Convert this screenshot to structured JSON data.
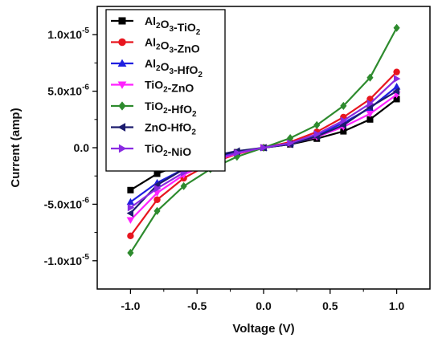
{
  "chart_data": {
    "type": "line",
    "xlabel": "Voltage (V)",
    "ylabel": "Current (amp)",
    "xlim": [
      -1.25,
      1.25
    ],
    "ylim": [
      -1.25e-05,
      1.25e-05
    ],
    "xticks": [
      {
        "value": -1.0,
        "label": "-1.0"
      },
      {
        "value": -0.5,
        "label": "-0.5"
      },
      {
        "value": 0.0,
        "label": "0.0"
      },
      {
        "value": 0.5,
        "label": "0.5"
      },
      {
        "value": 1.0,
        "label": "1.0"
      }
    ],
    "yticks": [
      {
        "value": -1e-05,
        "base": "-1.0x10",
        "exp": "-5"
      },
      {
        "value": -5e-06,
        "base": "-5.0x10",
        "exp": "-6"
      },
      {
        "value": 0.0,
        "base": "0.0",
        "exp": ""
      },
      {
        "value": 5e-06,
        "base": "5.0x10",
        "exp": "-6"
      },
      {
        "value": 1e-05,
        "base": "1.0x10",
        "exp": "-5"
      }
    ],
    "grid": false,
    "legend_position": "top-left",
    "x": [
      -1.0,
      -0.8,
      -0.6,
      -0.4,
      -0.2,
      0.0,
      0.2,
      0.4,
      0.6,
      0.8,
      1.0
    ],
    "series": [
      {
        "name": "Al2O3-TiO2",
        "label_parts": [
          [
            "Al",
            ""
          ],
          [
            "2",
            "sub"
          ],
          [
            "O",
            ""
          ],
          [
            "3",
            "sub"
          ],
          [
            "-TiO",
            ""
          ],
          [
            "2",
            "sub"
          ]
        ],
        "color": "#000000",
        "marker": "square",
        "values": [
          -3.75e-06,
          -2.3e-06,
          -1.4e-06,
          -8.5e-07,
          -4e-07,
          0.0,
          3e-07,
          8e-07,
          1.45e-06,
          2.5e-06,
          4.3e-06
        ]
      },
      {
        "name": "Al2O3-ZnO",
        "label_parts": [
          [
            "Al",
            ""
          ],
          [
            "2",
            "sub"
          ],
          [
            "O",
            ""
          ],
          [
            "3",
            "sub"
          ],
          [
            "-ZnO",
            ""
          ]
        ],
        "color": "#e8161f",
        "marker": "circle",
        "values": [
          -7.8e-06,
          -4.6e-06,
          -2.7e-06,
          -1.4e-06,
          -5.5e-07,
          0.0,
          5e-07,
          1.4e-06,
          2.7e-06,
          4.3e-06,
          6.7e-06
        ]
      },
      {
        "name": "Al2O3-HfO2",
        "label_parts": [
          [
            "Al",
            ""
          ],
          [
            "2",
            "sub"
          ],
          [
            "O",
            ""
          ],
          [
            "3",
            "sub"
          ],
          [
            "-HfO",
            ""
          ],
          [
            "2",
            "sub"
          ]
        ],
        "color": "#1f1fe0",
        "marker": "triangle-up",
        "values": [
          -4.8e-06,
          -3.1e-06,
          -1.9e-06,
          -1e-06,
          -4.5e-07,
          0.0,
          4e-07,
          1.1e-06,
          2.2e-06,
          3.5e-06,
          5.4e-06
        ]
      },
      {
        "name": "TiO2-ZnO",
        "label_parts": [
          [
            "TiO",
            ""
          ],
          [
            "2",
            "sub"
          ],
          [
            "-ZnO",
            ""
          ]
        ],
        "color": "#ff22ff",
        "marker": "triangle-down",
        "values": [
          -6.4e-06,
          -4e-06,
          -2.4e-06,
          -1.25e-06,
          -5e-07,
          0.0,
          3.5e-07,
          9.5e-07,
          1.85e-06,
          3e-06,
          4.7e-06
        ]
      },
      {
        "name": "TiO2-HfO2",
        "label_parts": [
          [
            "TiO",
            ""
          ],
          [
            "2",
            "sub"
          ],
          [
            "-HfO",
            ""
          ],
          [
            "2",
            "sub"
          ]
        ],
        "color": "#2e8b2e",
        "marker": "diamond",
        "values": [
          -9.3e-06,
          -5.6e-06,
          -3.4e-06,
          -1.9e-06,
          -8e-07,
          0.0,
          8.5e-07,
          2e-06,
          3.7e-06,
          6.2e-06,
          1.06e-05
        ]
      },
      {
        "name": "ZnO-HfO2",
        "label_parts": [
          [
            "ZnO-HfO",
            ""
          ],
          [
            "2",
            "sub"
          ]
        ],
        "color": "#1c1c6e",
        "marker": "triangle-left",
        "values": [
          -5.8e-06,
          -3.3e-06,
          -1.9e-06,
          -7.5e-07,
          -3e-07,
          0.0,
          3e-07,
          1e-06,
          2e-06,
          3.6e-06,
          5e-06
        ]
      },
      {
        "name": "TiO2-NiO",
        "label_parts": [
          [
            "TiO",
            ""
          ],
          [
            "2",
            "sub"
          ],
          [
            "-NiO",
            ""
          ]
        ],
        "color": "#8a2be2",
        "marker": "triangle-right",
        "values": [
          -5.3e-06,
          -3.6e-06,
          -2.2e-06,
          -1.15e-06,
          -4.5e-07,
          0.0,
          4e-07,
          1.2e-06,
          2.4e-06,
          3.9e-06,
          6.1e-06
        ]
      }
    ]
  }
}
